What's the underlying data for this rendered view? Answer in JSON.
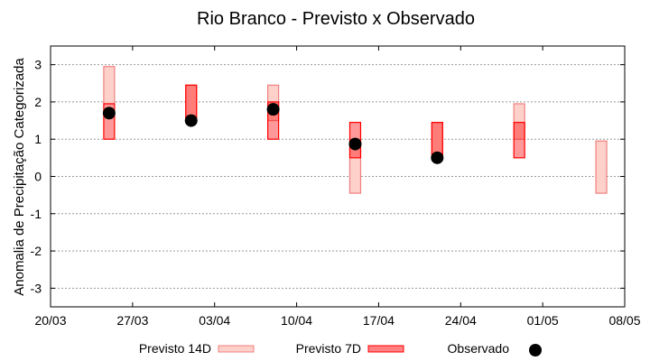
{
  "chart_data": {
    "type": "range-bar",
    "title": "Rio Branco - Previsto x Observado",
    "xlabel": "",
    "ylabel": "Anomalia de Precipitação Categorizada",
    "ylim": [
      -3.5,
      3.5
    ],
    "yticks": [
      3,
      2,
      1,
      0,
      -1,
      -2,
      -3
    ],
    "xticks": [
      "20/03",
      "27/03",
      "03/04",
      "10/04",
      "17/04",
      "24/04",
      "01/05",
      "08/05"
    ],
    "grid": true,
    "legend": "bottom",
    "series": [
      {
        "name": "Previsto 14D",
        "color": "#fdd0c9",
        "stroke": "#f08080",
        "points": [
          {
            "date": "25/03",
            "low": 1.95,
            "high": 2.95
          },
          {
            "date": "01/04",
            "low": 1.5,
            "high": 2.45
          },
          {
            "date": "08/04",
            "low": 1.5,
            "high": 2.45
          },
          {
            "date": "15/04",
            "low": -0.45,
            "high": 0.95
          },
          {
            "date": "22/04",
            "low": 0.5,
            "high": 1.45
          },
          {
            "date": "29/04",
            "low": 1.0,
            "high": 1.95
          },
          {
            "date": "06/05",
            "low": -0.45,
            "high": 0.95
          }
        ]
      },
      {
        "name": "Previsto 7D",
        "color": "#ff8080",
        "stroke": "#ff0000",
        "points": [
          {
            "date": "25/03",
            "low": 1.0,
            "high": 1.95
          },
          {
            "date": "01/04",
            "low": 1.5,
            "high": 2.45
          },
          {
            "date": "08/04",
            "low": 1.0,
            "high": 2.0
          },
          {
            "date": "15/04",
            "low": 0.5,
            "high": 1.45
          },
          {
            "date": "22/04",
            "low": 0.5,
            "high": 1.45
          },
          {
            "date": "29/04",
            "low": 0.5,
            "high": 1.45
          }
        ]
      },
      {
        "name": "Observado",
        "color": "#000000",
        "points": [
          {
            "date": "25/03",
            "value": 1.7
          },
          {
            "date": "01/04",
            "value": 1.5
          },
          {
            "date": "08/04",
            "value": 1.8
          },
          {
            "date": "15/04",
            "value": 0.87
          },
          {
            "date": "22/04",
            "value": 0.5
          }
        ]
      }
    ]
  }
}
